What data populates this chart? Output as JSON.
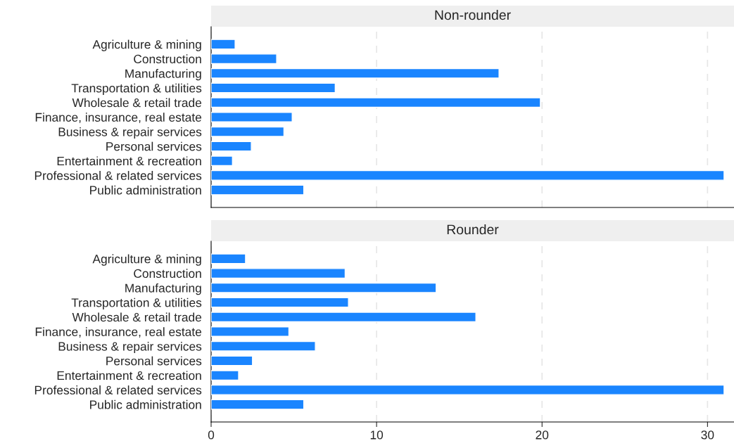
{
  "chart_data": [
    {
      "type": "bar",
      "orientation": "horizontal",
      "title": "Non-rounder",
      "categories": [
        "Agriculture & mining",
        "Construction",
        "Manufacturing",
        "Transportation & utilities",
        "Wholesale & retail trade",
        "Finance, insurance, real estate",
        "Business & repair services",
        "Personal services",
        "Entertainment & recreation",
        "Professional & related services",
        "Public administration"
      ],
      "series": [
        {
          "color": "#1a85ff",
          "values": [
            1.45,
            3.96,
            17.4,
            7.5,
            19.9,
            4.9,
            4.4,
            2.43,
            1.29,
            31.0,
            5.6
          ]
        }
      ],
      "xlim": [
        0,
        31.6
      ],
      "xticks": [
        0,
        10,
        20,
        30
      ],
      "grid": "x",
      "tick_labels": "y"
    },
    {
      "type": "bar",
      "orientation": "horizontal",
      "title": "Rounder",
      "categories": [
        "Agriculture & mining",
        "Construction",
        "Manufacturing",
        "Transportation & utilities",
        "Wholesale & retail trade",
        "Finance, insurance, real estate",
        "Business & repair services",
        "Personal services",
        "Entertainment & recreation",
        "Professional & related services",
        "Public administration"
      ],
      "series": [
        {
          "color": "#1a85ff",
          "values": [
            2.08,
            8.1,
            13.6,
            8.3,
            16.0,
            4.7,
            6.3,
            2.5,
            1.66,
            31.0,
            5.6
          ]
        }
      ],
      "xlim": [
        0,
        31.6
      ],
      "xticks": [
        0,
        10,
        20,
        30
      ],
      "grid": "x"
    }
  ]
}
